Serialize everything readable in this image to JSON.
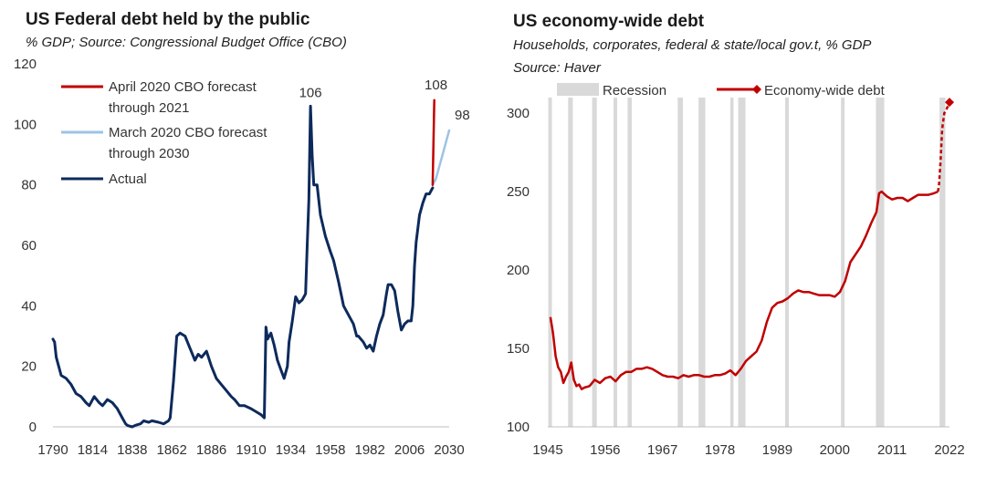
{
  "chart_data": [
    {
      "type": "line",
      "title": "US Federal debt held by the public",
      "subtitle": "% GDP; Source: Congressional Budget Office (CBO)",
      "xlim": [
        1790,
        2030
      ],
      "ylim": [
        0,
        120
      ],
      "xticks": [
        "1790",
        "1814",
        "1838",
        "1862",
        "1886",
        "1910",
        "1934",
        "1958",
        "1982",
        "2006",
        "2030"
      ],
      "yticks": [
        "0",
        "20",
        "40",
        "60",
        "80",
        "100",
        "120"
      ],
      "legend_position": "top-left",
      "series": [
        {
          "name": "April 2020 CBO forecast through 2021",
          "color": "#c00000",
          "x": [
            2020,
            2021
          ],
          "y": [
            80,
            108
          ]
        },
        {
          "name": "March 2020 CBO forecast through 2030",
          "color": "#9dc3e6",
          "x": [
            2020,
            2022,
            2024,
            2026,
            2028,
            2030
          ],
          "y": [
            80,
            82,
            86,
            90,
            94,
            98
          ]
        },
        {
          "name": "Actual",
          "color": "#0d2a5c",
          "x": [
            1790,
            1791,
            1792,
            1795,
            1798,
            1801,
            1804,
            1807,
            1810,
            1812,
            1815,
            1818,
            1820,
            1823,
            1826,
            1829,
            1832,
            1834,
            1835,
            1836,
            1838,
            1840,
            1843,
            1845,
            1848,
            1850,
            1854,
            1857,
            1860,
            1861,
            1863,
            1865,
            1867,
            1870,
            1873,
            1876,
            1878,
            1880,
            1883,
            1886,
            1889,
            1892,
            1895,
            1898,
            1900,
            1903,
            1906,
            1910,
            1913,
            1916,
            1917,
            1918,
            1919,
            1920,
            1922,
            1924,
            1926,
            1928,
            1930,
            1932,
            1933,
            1935,
            1937,
            1939,
            1941,
            1943,
            1944,
            1945,
            1946,
            1947,
            1948,
            1950,
            1952,
            1955,
            1958,
            1960,
            1963,
            1966,
            1969,
            1972,
            1974,
            1975,
            1978,
            1980,
            1982,
            1984,
            1986,
            1988,
            1990,
            1992,
            1993,
            1995,
            1997,
            1999,
            2001,
            2003,
            2005,
            2007,
            2008,
            2009,
            2010,
            2012,
            2014,
            2016,
            2018,
            2019,
            2020
          ],
          "y": [
            29,
            28,
            23,
            17,
            16,
            14,
            11,
            10,
            8,
            7,
            10,
            8,
            7,
            9,
            8,
            6,
            3,
            1,
            0.5,
            0.3,
            0,
            0.5,
            1,
            2,
            1.5,
            2,
            1.5,
            1,
            2,
            3,
            15,
            30,
            31,
            30,
            26,
            22,
            24,
            23,
            25,
            20,
            16,
            14,
            12,
            10,
            9,
            7,
            7,
            6,
            5,
            4,
            3.5,
            3,
            33,
            29,
            31,
            27,
            22,
            19,
            16,
            20,
            28,
            35,
            43,
            41,
            42,
            44,
            60,
            75,
            106,
            90,
            80,
            80,
            70,
            63,
            58,
            55,
            48,
            40,
            37,
            34,
            30,
            30,
            28,
            26,
            27,
            25,
            30,
            34,
            37,
            44,
            47,
            47,
            45,
            38,
            32,
            34,
            35,
            35,
            40,
            53,
            61,
            70,
            74,
            77,
            77,
            78,
            79
          ]
        }
      ],
      "annotations": [
        "106",
        "108",
        "98"
      ]
    },
    {
      "type": "line",
      "title": "US economy-wide debt",
      "subtitle": "Households, corporates, federal & state/local gov.t, % GDP",
      "subtitle2": "Source: Haver",
      "xlim": [
        1945,
        2022
      ],
      "ylim": [
        100,
        310
      ],
      "xticks": [
        "1945",
        "1956",
        "1967",
        "1978",
        "1989",
        "2000",
        "2011",
        "2022"
      ],
      "yticks": [
        "100",
        "150",
        "200",
        "250",
        "300"
      ],
      "legend_position": "top",
      "legend": [
        "Recession",
        "Economy-wide debt"
      ],
      "recession_color": "#d9d9d9",
      "recessions": [
        [
          1945.1,
          1945.8
        ],
        [
          1948.9,
          1949.8
        ],
        [
          1953.5,
          1954.4
        ],
        [
          1957.6,
          1958.3
        ],
        [
          1960.3,
          1961.1
        ],
        [
          1969.9,
          1970.9
        ],
        [
          1973.9,
          1975.2
        ],
        [
          1980.0,
          1980.6
        ],
        [
          1981.5,
          1982.9
        ],
        [
          1990.5,
          1991.2
        ],
        [
          2001.2,
          2001.9
        ],
        [
          2007.9,
          2009.5
        ],
        [
          2020.1,
          2021.2
        ]
      ],
      "series": [
        {
          "name": "Economy-wide debt",
          "color": "#c00000",
          "x": [
            1945.5,
            1946,
            1946.5,
            1947,
            1947.5,
            1948,
            1948.5,
            1949,
            1949.5,
            1950,
            1950.5,
            1951,
            1951.5,
            1952,
            1953,
            1954,
            1955,
            1956,
            1957,
            1958,
            1959,
            1960,
            1961,
            1962,
            1963,
            1964,
            1965,
            1966,
            1967,
            1968,
            1969,
            1970,
            1971,
            1972,
            1973,
            1974,
            1975,
            1976,
            1977,
            1978,
            1979,
            1980,
            1981,
            1982,
            1983,
            1984,
            1985,
            1986,
            1987,
            1988,
            1989,
            1990,
            1991,
            1992,
            1993,
            1994,
            1995,
            1996,
            1997,
            1998,
            1999,
            2000,
            2001,
            2002,
            2003,
            2004,
            2005,
            2006,
            2007,
            2008,
            2008.5,
            2009,
            2010,
            2011,
            2012,
            2013,
            2014,
            2015,
            2016,
            2017,
            2018,
            2019,
            2019.8,
            2020,
            2020.3,
            2020.6,
            2021,
            2021.5,
            2022
          ],
          "y": [
            170,
            160,
            145,
            138,
            135,
            128,
            132,
            135,
            141,
            130,
            126,
            127,
            124,
            125,
            126,
            130,
            128,
            131,
            132,
            129,
            133,
            135,
            135,
            137,
            137,
            138,
            137,
            135,
            133,
            132,
            132,
            131,
            133,
            132,
            133,
            133,
            132,
            132,
            133,
            133,
            134,
            136,
            133,
            137,
            142,
            145,
            148,
            155,
            167,
            176,
            179,
            180,
            182,
            185,
            187,
            186,
            186,
            185,
            184,
            184,
            184,
            183,
            186,
            193,
            205,
            210,
            215,
            222,
            230,
            237,
            249,
            250,
            247,
            245,
            246,
            246,
            244,
            246,
            248,
            248,
            248,
            249,
            250,
            255,
            270,
            290,
            300,
            303,
            307
          ]
        }
      ],
      "annotations": []
    }
  ]
}
